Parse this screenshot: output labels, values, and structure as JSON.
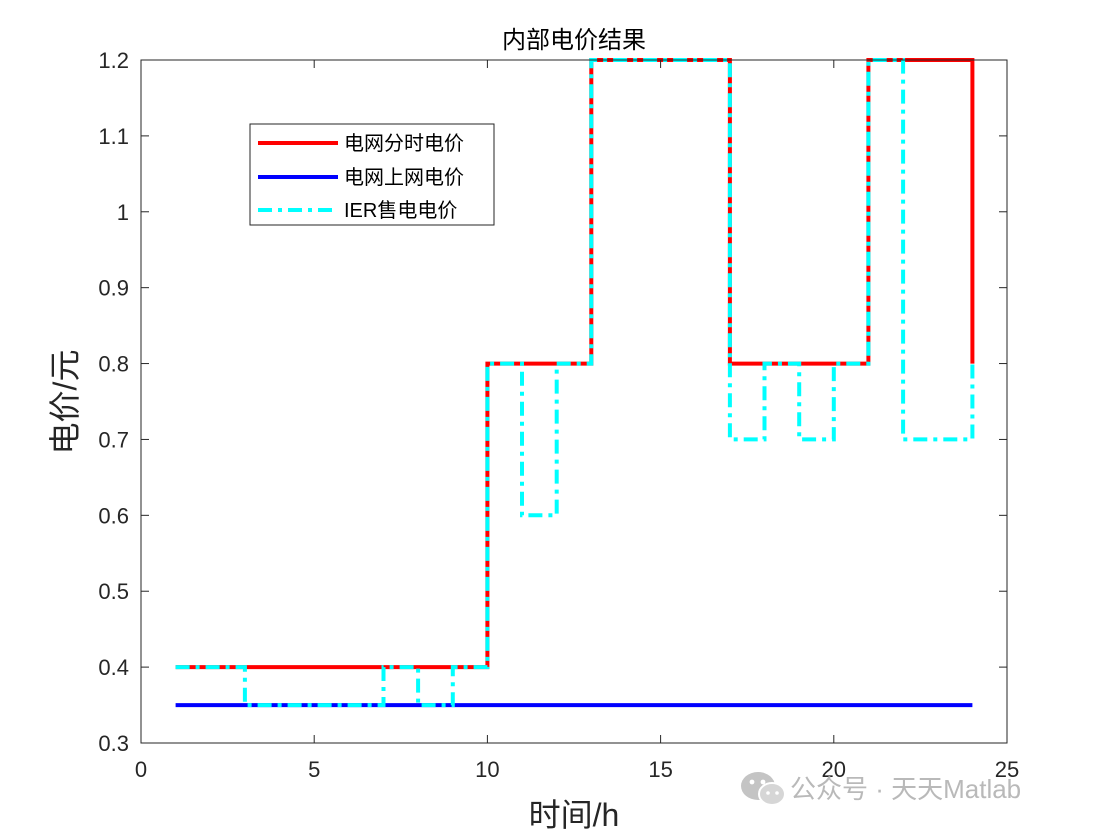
{
  "chart_data": {
    "type": "line",
    "title": "内部电价结果",
    "xlabel": "时间/h",
    "ylabel": "电价/元",
    "xlim": [
      0,
      25
    ],
    "ylim": [
      0.3,
      1.2
    ],
    "xticks": [
      0,
      5,
      10,
      15,
      20,
      25
    ],
    "yticks": [
      0.3,
      0.4,
      0.5,
      0.6,
      0.7,
      0.8,
      0.9,
      1,
      1.1,
      1.2
    ],
    "ytick_labels": [
      "0.3",
      "0.4",
      "0.5",
      "0.6",
      "0.7",
      "0.8",
      "0.9",
      "1",
      "1.1",
      "1.2"
    ],
    "grid": false,
    "legend_position": "top-left",
    "series": [
      {
        "name": "电网分时电价",
        "color": "#ff0000",
        "style": "solid",
        "x": [
          1,
          10,
          10,
          13,
          13,
          17,
          17,
          21,
          21,
          24,
          24
        ],
        "y": [
          0.4,
          0.4,
          0.8,
          0.8,
          1.2,
          1.2,
          0.8,
          0.8,
          1.2,
          1.2,
          0.8
        ]
      },
      {
        "name": "电网上网电价",
        "color": "#0000ff",
        "style": "solid",
        "x": [
          1,
          24
        ],
        "y": [
          0.35,
          0.35
        ]
      },
      {
        "name": "IER售电电价",
        "color": "#00ffff",
        "style": "dashdot",
        "x": [
          1,
          3,
          3,
          7,
          7,
          8,
          8,
          9,
          9,
          10,
          10,
          11,
          11,
          12,
          12,
          13,
          13,
          17,
          17,
          18,
          18,
          19,
          19,
          20,
          20,
          21,
          21,
          22,
          22,
          24,
          24
        ],
        "y": [
          0.4,
          0.4,
          0.35,
          0.35,
          0.4,
          0.4,
          0.35,
          0.35,
          0.4,
          0.4,
          0.8,
          0.8,
          0.6,
          0.6,
          0.8,
          0.8,
          1.2,
          1.2,
          0.7,
          0.7,
          0.8,
          0.8,
          0.7,
          0.7,
          0.8,
          0.8,
          1.2,
          1.2,
          0.7,
          0.7,
          0.8
        ]
      }
    ]
  },
  "watermark": {
    "icon": "wechat-icon",
    "text": "公众号 · 天天Matlab"
  }
}
